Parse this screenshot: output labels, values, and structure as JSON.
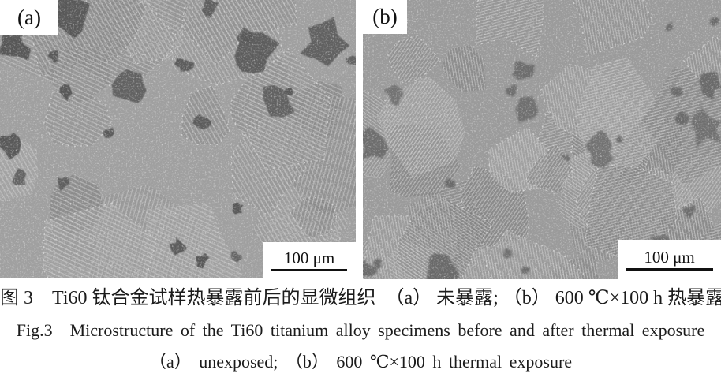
{
  "figure": {
    "panels": [
      {
        "id": "a",
        "label": "(a)",
        "scale_label": "100 μm"
      },
      {
        "id": "b",
        "label": "(b)",
        "scale_label": "100 μm"
      }
    ],
    "caption": {
      "zh": "图 3　Ti60 钛合金试样热暴露前后的显微组织　（a） 未暴露; （b） 600 ℃×100 h 热暴露",
      "en_line1": "Fig.3　Microstructure of the Ti60 titanium alloy specimens before and after thermal exposure",
      "en_line2": "（a） unexposed; （b） 600 ℃×100 h thermal exposure"
    },
    "palette": {
      "page_background": "#ffffff",
      "caption_text": "#1b1b1b",
      "micrograph_base_a": "#a0a0a0",
      "micrograph_base_b": "#9b9b9b",
      "dark_phase_a": "#565656",
      "dark_phase_b": "#696969",
      "stripe_light": "#cfcfcf",
      "boundary_fleck": "#e2e2e2",
      "scale_bar_line": "#111111"
    }
  }
}
